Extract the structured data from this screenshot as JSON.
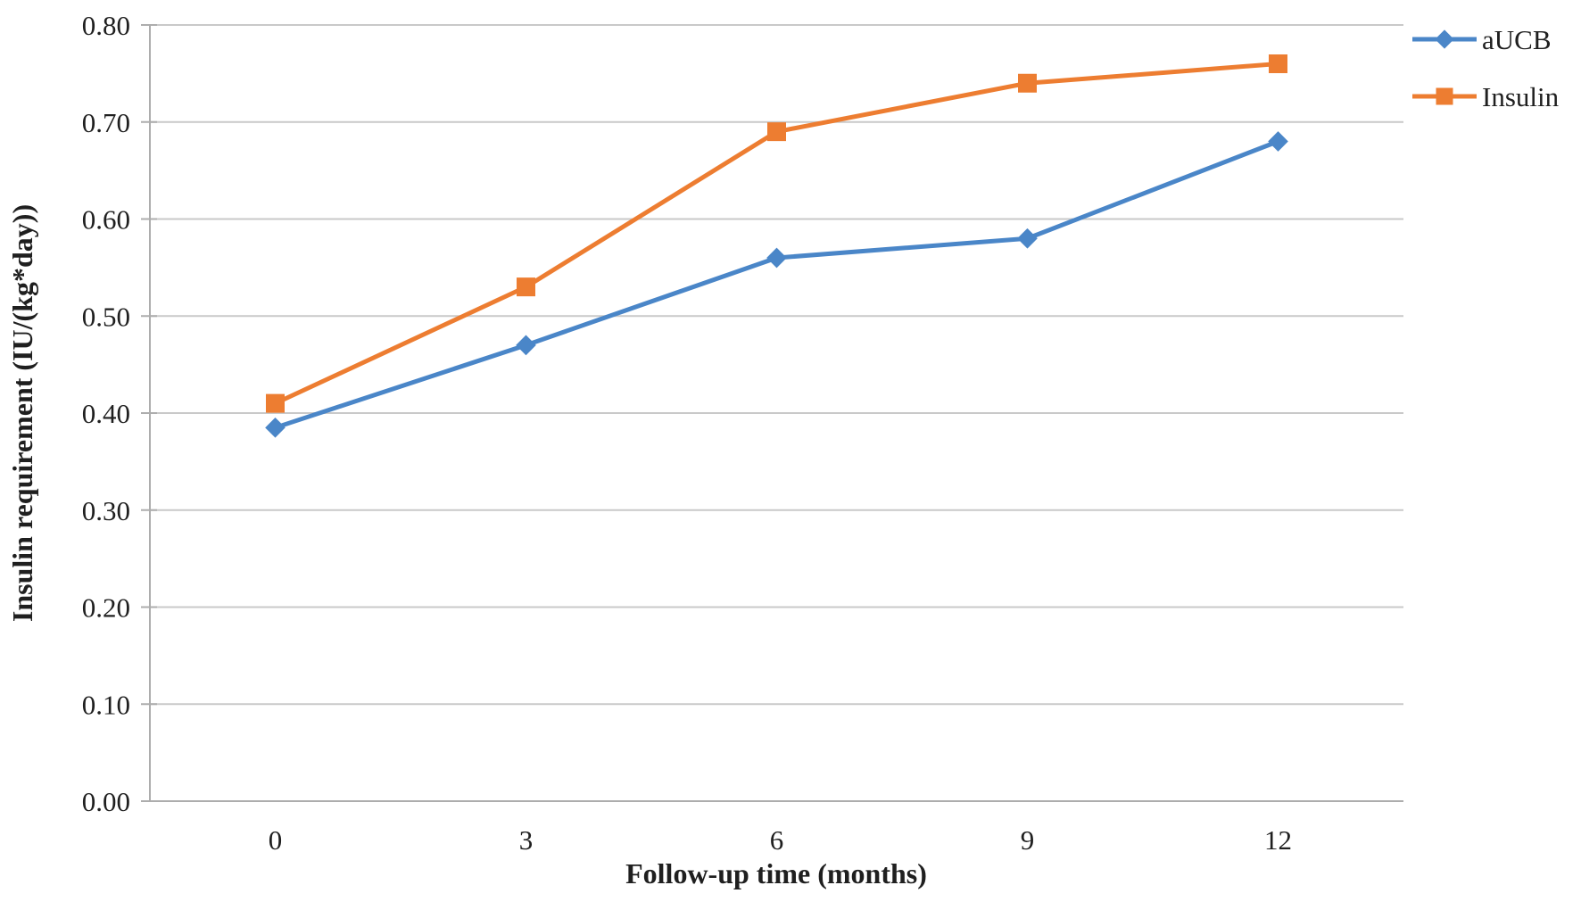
{
  "chart_data": {
    "type": "line",
    "title": "",
    "xlabel": "Follow-up time (months)",
    "ylabel": "Insulin requirement (IU/(kg*day))",
    "x": [
      0,
      3,
      6,
      9,
      12
    ],
    "x_tick_labels": [
      "0",
      "3",
      "6",
      "9",
      "12"
    ],
    "y_ticks": [
      0.0,
      0.1,
      0.2,
      0.3,
      0.4,
      0.5,
      0.6,
      0.7,
      0.8
    ],
    "y_tick_labels": [
      "0.00",
      "0.10",
      "0.20",
      "0.30",
      "0.40",
      "0.50",
      "0.60",
      "0.70",
      "0.80"
    ],
    "ylim": [
      0,
      0.8
    ],
    "grid": "horizontal",
    "legend_position": "top-right",
    "series": [
      {
        "name": "aUCB",
        "marker": "diamond",
        "color": "#4A86C8",
        "values": [
          0.385,
          0.47,
          0.56,
          0.58,
          0.68
        ]
      },
      {
        "name": "Insulin",
        "marker": "square",
        "color": "#ED7D31",
        "values": [
          0.41,
          0.53,
          0.69,
          0.74,
          0.76
        ]
      }
    ]
  },
  "colors": {
    "gridline": "#C9C9C9",
    "axis": "#ADADAD",
    "text": "#1f1f1f",
    "background": "#ffffff"
  }
}
